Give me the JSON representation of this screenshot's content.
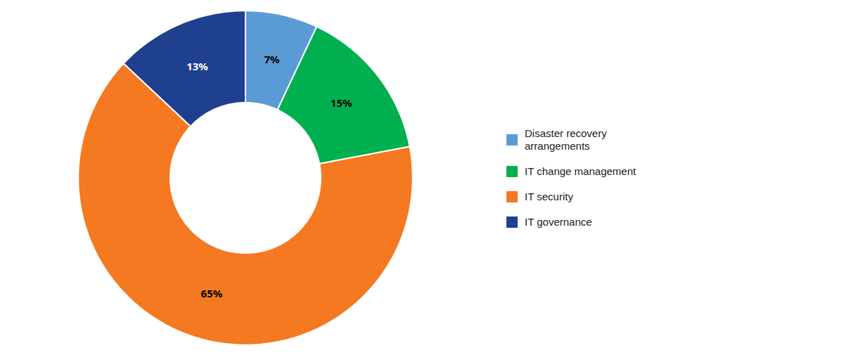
{
  "chart_data": {
    "type": "pie",
    "categories": [
      "Disaster recovery\narrangements",
      "IT change management",
      "IT security",
      "IT governance"
    ],
    "values": [
      7,
      15,
      65,
      13
    ],
    "value_labels": [
      "7%",
      "15%",
      "65%",
      "13%"
    ],
    "colors": [
      "#5B9BD5",
      "#00B050",
      "#F47920",
      "#1F3F8F"
    ],
    "data_labels": true,
    "legend": "right",
    "tick_labels": false
  }
}
